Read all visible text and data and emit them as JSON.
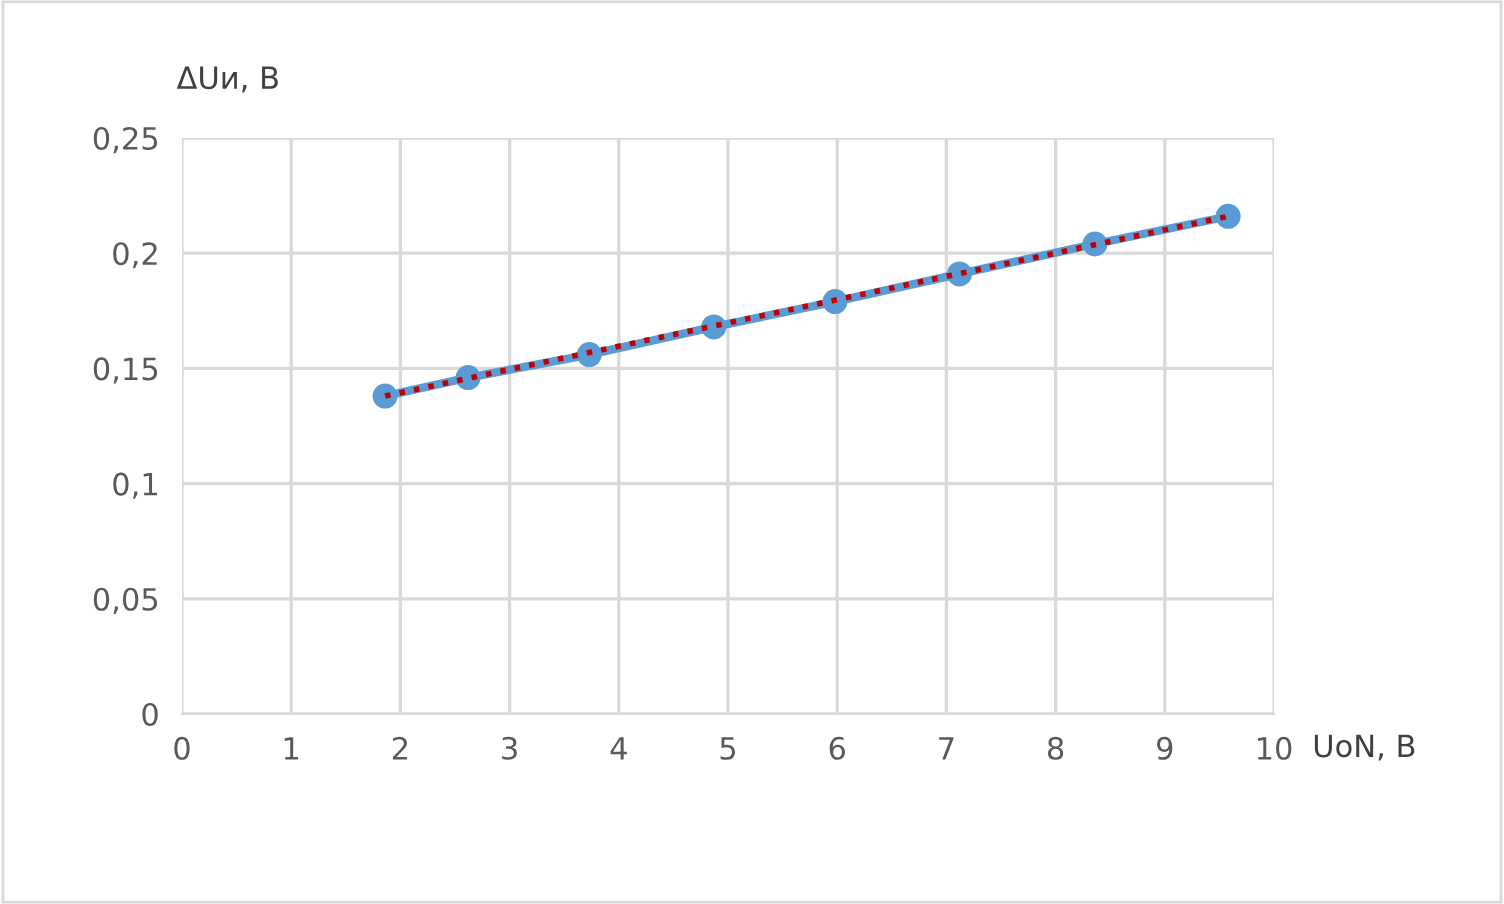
{
  "chart_data": {
    "type": "line",
    "xlabel": "UoN, В",
    "ylabel": "ΔUи, В",
    "xlim": [
      0,
      10
    ],
    "xticks": [
      0,
      1,
      2,
      3,
      4,
      5,
      6,
      7,
      8,
      9,
      10
    ],
    "ylim": [
      0,
      0.25
    ],
    "yticks": [
      {
        "value": 0,
        "label": "0"
      },
      {
        "value": 0.05,
        "label": "0,05"
      },
      {
        "value": 0.1,
        "label": "0,1"
      },
      {
        "value": 0.15,
        "label": "0,15"
      },
      {
        "value": 0.2,
        "label": "0,2"
      },
      {
        "value": 0.25,
        "label": "0,25"
      }
    ],
    "grid": true,
    "series": [
      {
        "color": "#5b9bd5",
        "marker": "circle",
        "line_style": "solid",
        "x": [
          1.86,
          2.62,
          3.73,
          4.87,
          5.98,
          7.12,
          8.36,
          9.58
        ],
        "values": [
          0.138,
          0.146,
          0.156,
          0.168,
          0.179,
          0.191,
          0.204,
          0.216
        ]
      },
      {
        "type": "line",
        "color": "#c00000",
        "marker": "none",
        "line_style": "dotted",
        "x": [
          1.86,
          9.58
        ],
        "values": [
          0.138,
          0.216
        ]
      }
    ]
  }
}
